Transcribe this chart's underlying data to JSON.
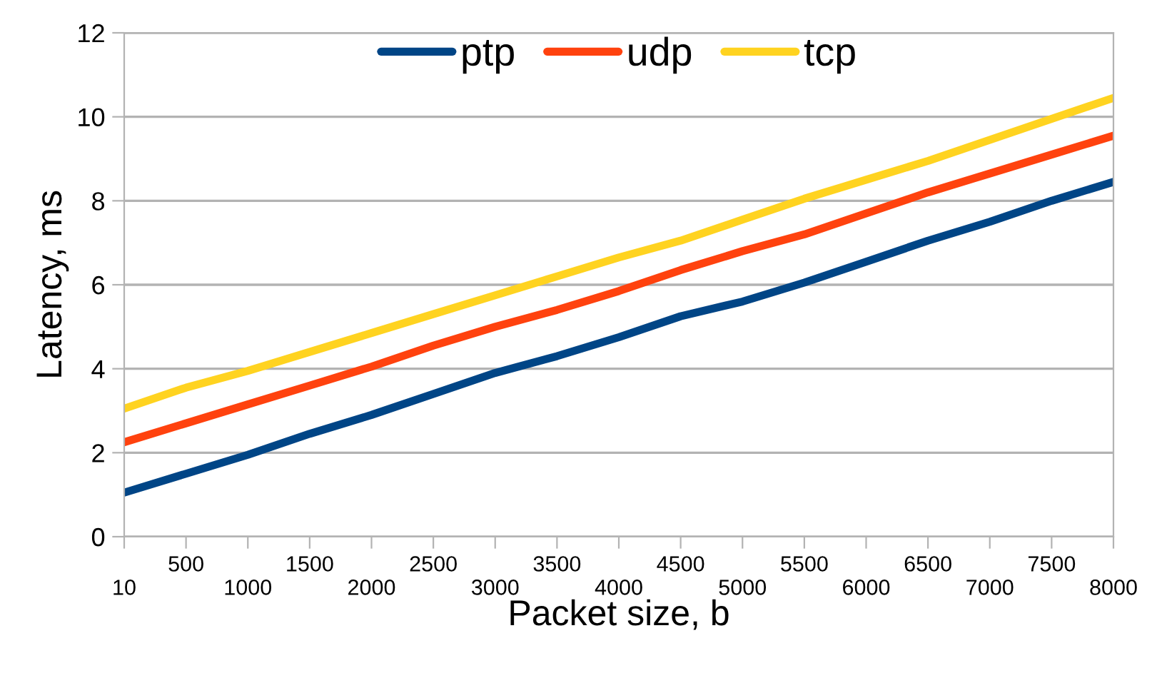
{
  "chart_data": {
    "type": "line",
    "xlabel": "Packet size, b",
    "ylabel": "Latency, ms",
    "categories": [
      "10",
      "500",
      "1000",
      "1500",
      "2000",
      "2500",
      "3000",
      "3500",
      "4000",
      "4500",
      "5000",
      "5500",
      "6000",
      "6500",
      "7000",
      "7500",
      "8000"
    ],
    "series": [
      {
        "name": "ptp",
        "color": "#004586",
        "values": [
          1.05,
          1.5,
          1.95,
          2.45,
          2.9,
          3.4,
          3.9,
          4.3,
          4.75,
          5.25,
          5.6,
          6.05,
          6.55,
          7.05,
          7.5,
          8.0,
          8.45
        ]
      },
      {
        "name": "udp",
        "color": "#ff420e",
        "values": [
          2.25,
          2.7,
          3.15,
          3.6,
          4.05,
          4.55,
          5.0,
          5.4,
          5.85,
          6.35,
          6.8,
          7.2,
          7.7,
          8.2,
          8.65,
          9.1,
          9.55
        ]
      },
      {
        "name": "tcp",
        "color": "#ffd320",
        "values": [
          3.05,
          3.55,
          3.95,
          4.4,
          4.85,
          5.3,
          5.75,
          6.2,
          6.65,
          7.05,
          7.55,
          8.05,
          8.5,
          8.95,
          9.45,
          9.95,
          10.45
        ]
      }
    ],
    "ylim": [
      0,
      12
    ],
    "yticks": [
      0,
      2,
      4,
      6,
      8,
      10,
      12
    ],
    "grid": "y",
    "legend": "top",
    "marker": "none",
    "line_style": "solid"
  }
}
